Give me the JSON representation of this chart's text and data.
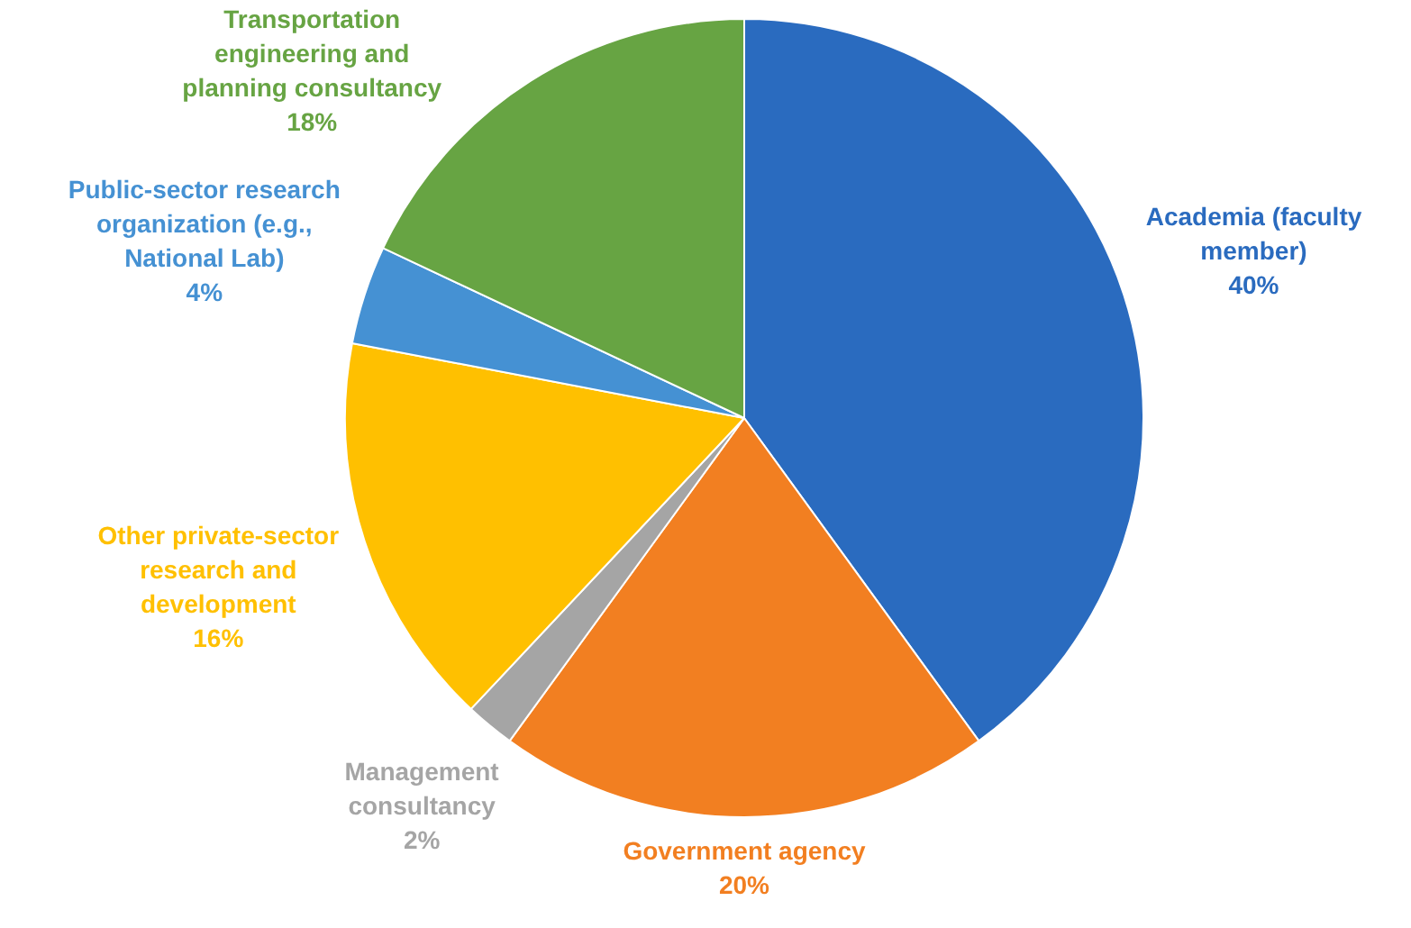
{
  "chart_data": {
    "type": "pie",
    "categories": [
      "Academia (faculty member)",
      "Government agency",
      "Management consultancy",
      "Other private-sector research and development",
      "Public-sector research organization (e.g., National Lab)",
      "Transportation engineering and planning consultancy"
    ],
    "values": [
      40,
      20,
      2,
      16,
      4,
      18
    ],
    "colors": [
      "#2a6bbf",
      "#f27f21",
      "#a5a5a5",
      "#ffc000",
      "#4591d3",
      "#67a443"
    ],
    "value_labels": [
      "40%",
      "20%",
      "2%",
      "16%",
      "4%",
      "18%"
    ],
    "legend": false
  }
}
